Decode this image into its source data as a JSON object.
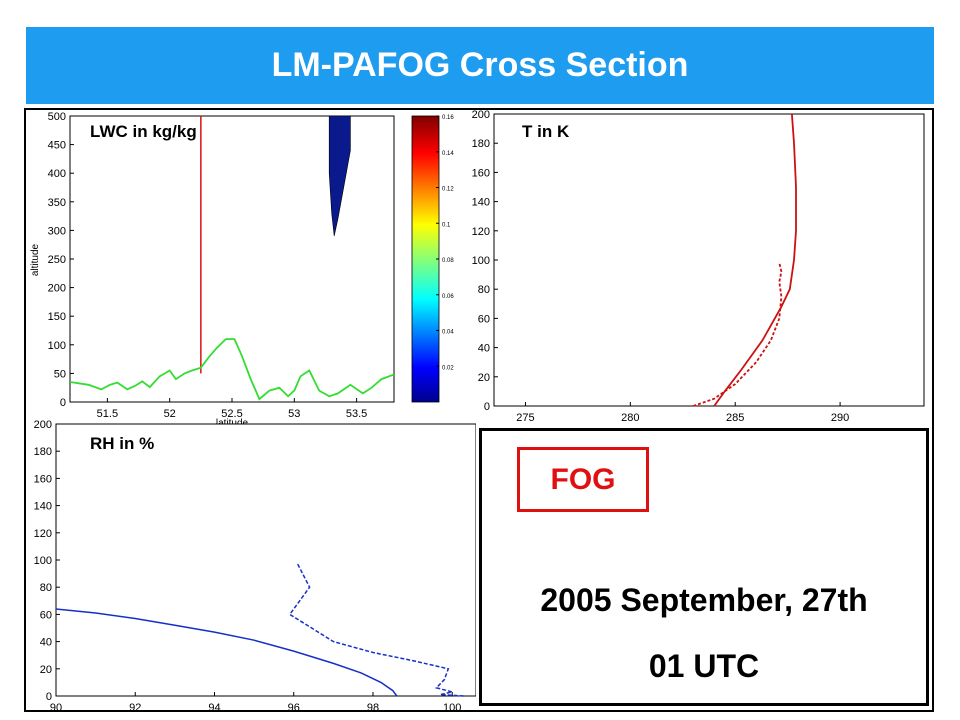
{
  "header": {
    "title": "LM-PAFOG Cross Section"
  },
  "panels": {
    "lwc_label": "LWC in kg/kg",
    "t_label": "T in K",
    "rh_label": "RH in %"
  },
  "info": {
    "badge": "FOG",
    "date": "2005 September, 27th",
    "time": "01 UTC"
  },
  "colors": {
    "title_bg": "#1e9cf0",
    "fog_red": "#e01010",
    "temp_red": "#cc1111",
    "rh_blue": "#1530c8",
    "terrain_green": "#33dd33",
    "fog_navy": "#0a1a8c"
  },
  "chart_data": [
    {
      "type": "line",
      "name": "LWC cross section",
      "xlabel": "latitude",
      "ylabel": "altitude",
      "xlim": [
        51.2,
        53.8
      ],
      "ylim": [
        0,
        500
      ],
      "xticks": [
        51.5,
        52,
        52.5,
        53,
        53.5
      ],
      "yticks": [
        0,
        50,
        100,
        150,
        200,
        250,
        300,
        350,
        400,
        450,
        500
      ],
      "series": [
        {
          "x": [
            51.2,
            51.35,
            51.45,
            51.52,
            51.58,
            51.66,
            51.72,
            51.78,
            51.84,
            51.92,
            52.0,
            52.05,
            52.12,
            52.18,
            52.25,
            52.32,
            52.38,
            52.45,
            52.52,
            52.58,
            52.65,
            52.72,
            52.8,
            52.88,
            52.95,
            53.0,
            53.05,
            53.12,
            53.2,
            53.28,
            53.35,
            53.45,
            53.55,
            53.62,
            53.7,
            53.8
          ],
          "y": [
            35,
            30,
            22,
            30,
            34,
            22,
            28,
            36,
            26,
            45,
            55,
            40,
            50,
            55,
            60,
            80,
            95,
            110,
            110,
            80,
            40,
            5,
            20,
            25,
            10,
            20,
            45,
            55,
            20,
            10,
            15,
            30,
            15,
            25,
            40,
            48
          ]
        }
      ],
      "vertical_line_x": 52.25,
      "fog_region": {
        "x": [
          53.32,
          53.45,
          53.45,
          53.4,
          53.35,
          53.32,
          53.3,
          53.28,
          53.28
        ],
        "y": [
          500,
          500,
          440,
          380,
          320,
          290,
          330,
          400,
          500
        ]
      },
      "colorbar": {
        "min": 0,
        "max": 0.16,
        "ticks": [
          0.02,
          0.04,
          0.06,
          0.08,
          0.1,
          0.12,
          0.14,
          0.16
        ]
      }
    },
    {
      "type": "line",
      "name": "Temperature profile",
      "xlim": [
        273.5,
        294
      ],
      "ylim": [
        0,
        200
      ],
      "xticks": [
        275,
        280,
        285,
        290
      ],
      "yticks": [
        0,
        20,
        40,
        60,
        80,
        100,
        120,
        140,
        160,
        180,
        200
      ],
      "series": [
        {
          "style": "solid",
          "x": [
            284,
            284.5,
            285.3,
            286.3,
            287.2,
            287.6,
            287.8,
            287.9,
            287.9,
            287.8,
            287.7
          ],
          "y": [
            0,
            10,
            25,
            45,
            68,
            80,
            100,
            120,
            150,
            180,
            200
          ]
        },
        {
          "style": "dashed",
          "x": [
            283,
            284,
            285,
            286,
            286.7,
            287.1,
            287.2,
            287.1,
            287.2,
            287.1
          ],
          "y": [
            0,
            5,
            15,
            30,
            45,
            60,
            75,
            85,
            92,
            98
          ]
        }
      ]
    },
    {
      "type": "line",
      "name": "Relative humidity profile",
      "xlim": [
        90,
        100.6
      ],
      "ylim": [
        0,
        200
      ],
      "xticks": [
        90,
        92,
        94,
        96,
        98,
        100
      ],
      "yticks": [
        0,
        20,
        40,
        60,
        80,
        100,
        120,
        140,
        160,
        180,
        200
      ],
      "series": [
        {
          "style": "solid",
          "x": [
            90,
            91,
            92,
            93,
            94,
            95,
            96,
            97,
            97.7,
            98.2,
            98.5,
            98.6
          ],
          "y": [
            64,
            61,
            57,
            52,
            47,
            41,
            33,
            24,
            17,
            10,
            4,
            0
          ]
        },
        {
          "style": "dashed",
          "x": [
            96.1,
            96.4,
            95.9,
            97,
            98,
            99,
            99.9,
            99.8,
            99.6,
            100,
            99.7,
            100.3
          ],
          "y": [
            97,
            80,
            60,
            40,
            32,
            26,
            20,
            12,
            6,
            3,
            1,
            0
          ]
        }
      ]
    }
  ]
}
